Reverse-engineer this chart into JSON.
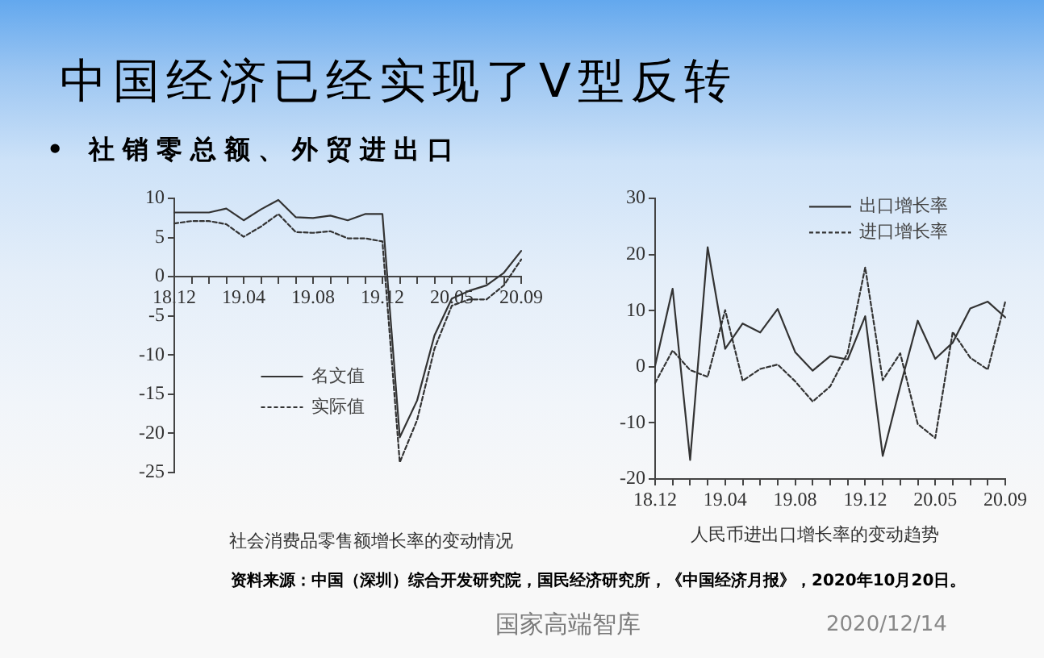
{
  "chart_data": [
    {
      "type": "other",
      "title": "中国经济已经实现了V型反转",
      "subtitle": "• 社销零总额、外贸进出口",
      "annotations": [
        "资料来源：中国（深圳）综合开发研究院，国民经济研究所，《中国经济月报》，2020年10月20日。",
        "国家高端智库",
        "2020/12/14"
      ]
    },
    {
      "type": "line",
      "title": "社会消费品零售额增长率的变动情况",
      "categories": [
        "18.12",
        null,
        null,
        null,
        "19.04",
        null,
        null,
        null,
        "19.08",
        null,
        null,
        null,
        "19.12",
        null,
        null,
        null,
        "20.05",
        null,
        null,
        null,
        "20.09"
      ],
      "series": [
        {
          "name": "名文值",
          "color": "#333333",
          "line_style": "solid",
          "values": [
            8.2,
            8.2,
            8.2,
            8.7,
            7.2,
            8.6,
            9.8,
            7.6,
            7.5,
            7.8,
            7.2,
            8.0,
            8.0,
            -20.5,
            -15.8,
            -7.5,
            -2.8,
            -1.8,
            -1.1,
            0.5,
            3.3
          ]
        },
        {
          "name": "实际值",
          "color": "#333333",
          "line_style": "dashed",
          "values": [
            6.8,
            7.1,
            7.1,
            6.7,
            5.1,
            6.4,
            8.0,
            5.7,
            5.6,
            5.8,
            4.9,
            4.9,
            4.5,
            -23.7,
            -18.3,
            -9.2,
            -3.7,
            -2.9,
            -2.9,
            -1.1,
            2.2
          ]
        }
      ],
      "ylim": [
        -25,
        10
      ],
      "yticks": [
        -25,
        -20,
        -15,
        -10,
        -5,
        0,
        5,
        10
      ],
      "grid": false,
      "legend": "bottom left",
      "marker": "none"
    },
    {
      "type": "line",
      "title": "人民币进出口增长率的变动趋势",
      "categories": [
        "18.12",
        null,
        null,
        null,
        "19.04",
        null,
        null,
        null,
        "19.08",
        null,
        null,
        null,
        "19.12",
        null,
        null,
        null,
        "20.05",
        null,
        null,
        null,
        "20.09"
      ],
      "series": [
        {
          "name": "出口增长率",
          "color": "#333333",
          "line_style": "solid",
          "values": [
            0.2,
            13.9,
            -16.6,
            21.3,
            3.2,
            7.7,
            6.1,
            10.3,
            2.6,
            -0.7,
            1.9,
            1.3,
            9.0,
            -15.9,
            -3.5,
            8.2,
            1.4,
            4.3,
            10.4,
            11.6,
            8.8
          ]
        },
        {
          "name": "进口增长率",
          "color": "#333333",
          "line_style": "dashed",
          "values": [
            -2.9,
            2.9,
            -0.6,
            -1.8,
            10.1,
            -2.5,
            -0.4,
            0.4,
            -2.6,
            -6.2,
            -3.5,
            2.5,
            17.7,
            -2.4,
            2.4,
            -10.2,
            -12.7,
            6.2,
            1.6,
            -0.5,
            11.6
          ]
        }
      ],
      "ylim": [
        -20,
        30
      ],
      "yticks": [
        -20,
        -10,
        0,
        10,
        20,
        30
      ],
      "grid": false,
      "legend": "top right",
      "marker": "none"
    }
  ]
}
